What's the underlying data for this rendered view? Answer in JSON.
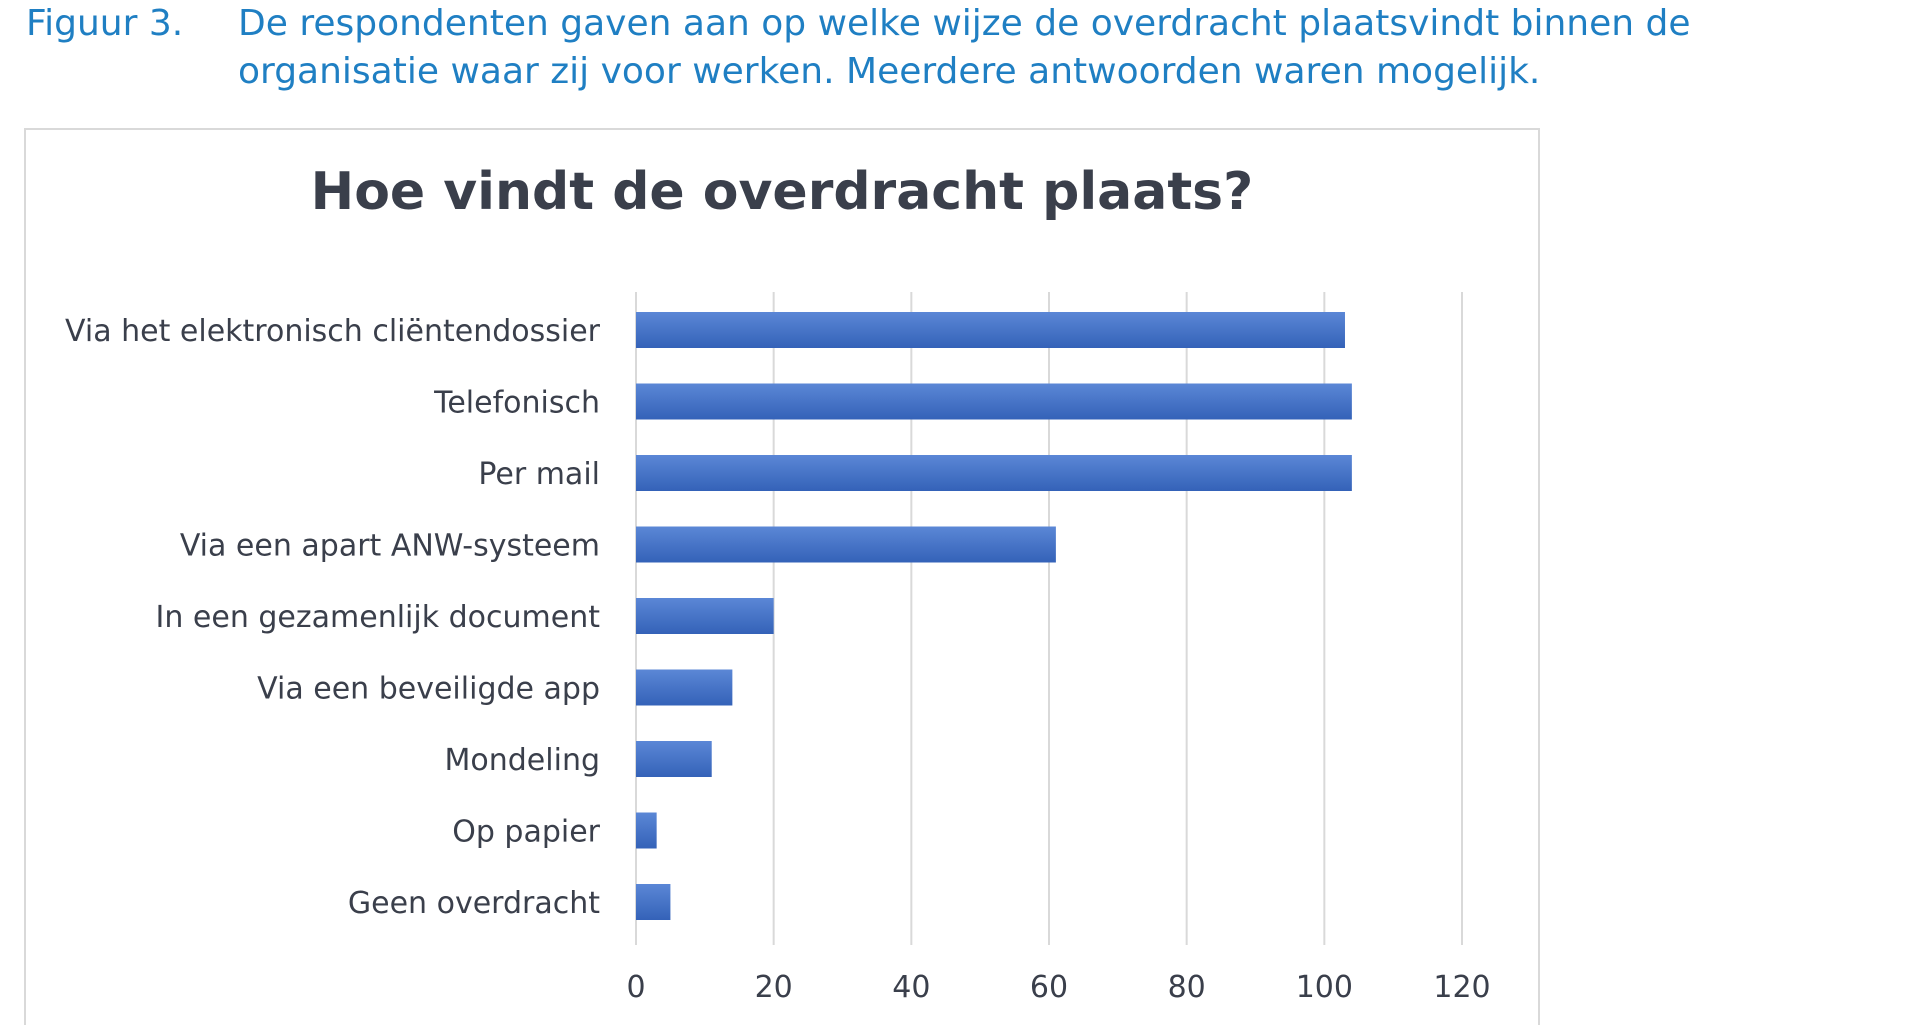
{
  "caption": {
    "label": "Figuur 3.",
    "text": "De respondenten gaven aan op welke wijze de overdracht plaatsvindt binnen de organisatie waar zij voor werken. Meerdere antwoorden waren mogelijk."
  },
  "colors": {
    "caption": "#1f7fc3",
    "bar": "#4472c4",
    "grid": "#d9d9d9",
    "text": "#3a3f4b"
  },
  "chart_data": {
    "type": "bar",
    "orientation": "horizontal",
    "title": "Hoe vindt de overdracht plaats?",
    "categories": [
      "Via het elektronisch cliëntendossier",
      "Telefonisch",
      "Per mail",
      "Via een apart ANW-systeem",
      "In een gezamenlijk document",
      "Via een beveiligde app",
      "Mondeling",
      "Op papier",
      "Geen overdracht"
    ],
    "values": [
      103,
      104,
      104,
      61,
      20,
      14,
      11,
      3,
      5
    ],
    "xlim": [
      0,
      120
    ],
    "xticks": [
      0,
      20,
      40,
      60,
      80,
      100,
      120
    ],
    "xtick_labels": [
      "0",
      "20",
      "40",
      "60",
      "80",
      "100",
      "120"
    ],
    "grid": "vertical",
    "legend": "none"
  }
}
